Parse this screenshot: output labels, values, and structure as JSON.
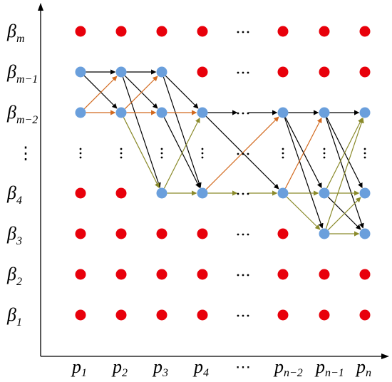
{
  "columns": [
    {
      "base": "p",
      "sub": "1"
    },
    {
      "base": "p",
      "sub": "2"
    },
    {
      "base": "p",
      "sub": "3"
    },
    {
      "base": "p",
      "sub": "4"
    },
    {
      "base": "⋯",
      "sub": ""
    },
    {
      "base": "p",
      "sub": "n−2"
    },
    {
      "base": "p",
      "sub": "n−1"
    },
    {
      "base": "p",
      "sub": "n"
    }
  ],
  "rows": [
    {
      "base": "β",
      "sub": "m"
    },
    {
      "base": "β",
      "sub": "m−1"
    },
    {
      "base": "β",
      "sub": "m−2"
    },
    {
      "base": "⋮",
      "sub": ""
    },
    {
      "base": "β",
      "sub": "4"
    },
    {
      "base": "β",
      "sub": "3"
    },
    {
      "base": "β",
      "sub": "2"
    },
    {
      "base": "β",
      "sub": "1"
    }
  ],
  "colors": {
    "inactive_node": "#e8000b",
    "active_node": "#6a9fdc",
    "edge_black": "#000000",
    "edge_olive": "#8a8a2a",
    "edge_orange": "#d2691e"
  },
  "grid": [
    "rrrr.rrr",
    "bbbr.rrr",
    "bbbb.bbb",
    "::::.:::",
    "rrbb.bbb",
    "rrrr.rbb",
    "rrrr.rrr",
    "rrrr.rrr"
  ],
  "edges": [
    {
      "from": [
        0,
        1
      ],
      "to": [
        1,
        1
      ],
      "color": "edge_black"
    },
    {
      "from": [
        0,
        1
      ],
      "to": [
        1,
        2
      ],
      "color": "edge_black"
    },
    {
      "from": [
        0,
        2
      ],
      "to": [
        1,
        1
      ],
      "color": "edge_orange"
    },
    {
      "from": [
        0,
        2
      ],
      "to": [
        1,
        2
      ],
      "color": "edge_orange"
    },
    {
      "from": [
        1,
        1
      ],
      "to": [
        2,
        1
      ],
      "color": "edge_black"
    },
    {
      "from": [
        1,
        1
      ],
      "to": [
        2,
        2
      ],
      "color": "edge_black"
    },
    {
      "from": [
        1,
        1
      ],
      "to": [
        2,
        4
      ],
      "color": "edge_black"
    },
    {
      "from": [
        1,
        2
      ],
      "to": [
        2,
        1
      ],
      "color": "edge_orange"
    },
    {
      "from": [
        1,
        2
      ],
      "to": [
        2,
        2
      ],
      "color": "edge_orange"
    },
    {
      "from": [
        1,
        2
      ],
      "to": [
        2,
        4
      ],
      "color": "edge_olive"
    },
    {
      "from": [
        2,
        1
      ],
      "to": [
        3,
        2
      ],
      "color": "edge_black"
    },
    {
      "from": [
        2,
        1
      ],
      "to": [
        3,
        4
      ],
      "color": "edge_black"
    },
    {
      "from": [
        2,
        2
      ],
      "to": [
        3,
        2
      ],
      "color": "edge_orange"
    },
    {
      "from": [
        2,
        2
      ],
      "to": [
        3,
        4
      ],
      "color": "edge_black"
    },
    {
      "from": [
        2,
        4
      ],
      "to": [
        3,
        2
      ],
      "color": "edge_olive"
    },
    {
      "from": [
        2,
        4
      ],
      "to": [
        3,
        4
      ],
      "color": "edge_olive"
    },
    {
      "from": [
        3,
        2
      ],
      "to": [
        4,
        2
      ],
      "color": "edge_black"
    },
    {
      "from": [
        3,
        2
      ],
      "to": [
        5,
        4
      ],
      "color": "edge_black"
    },
    {
      "from": [
        3,
        4
      ],
      "to": [
        5,
        2
      ],
      "color": "edge_orange"
    },
    {
      "from": [
        3,
        4
      ],
      "to": [
        4,
        4
      ],
      "color": "edge_olive"
    },
    {
      "from": [
        4,
        2
      ],
      "to": [
        5,
        2
      ],
      "color": "edge_black"
    },
    {
      "from": [
        4,
        4
      ],
      "to": [
        5,
        4
      ],
      "color": "edge_olive"
    },
    {
      "from": [
        5,
        2
      ],
      "to": [
        6,
        2
      ],
      "color": "edge_black"
    },
    {
      "from": [
        5,
        2
      ],
      "to": [
        6,
        4
      ],
      "color": "edge_black"
    },
    {
      "from": [
        5,
        2
      ],
      "to": [
        6,
        5
      ],
      "color": "edge_black"
    },
    {
      "from": [
        5,
        4
      ],
      "to": [
        6,
        2
      ],
      "color": "edge_orange"
    },
    {
      "from": [
        5,
        4
      ],
      "to": [
        6,
        4
      ],
      "color": "edge_olive"
    },
    {
      "from": [
        5,
        4
      ],
      "to": [
        6,
        5
      ],
      "color": "edge_olive"
    },
    {
      "from": [
        6,
        2
      ],
      "to": [
        7,
        2
      ],
      "color": "edge_black"
    },
    {
      "from": [
        6,
        2
      ],
      "to": [
        7,
        4
      ],
      "color": "edge_black"
    },
    {
      "from": [
        6,
        2
      ],
      "to": [
        7,
        5
      ],
      "color": "edge_black"
    },
    {
      "from": [
        6,
        4
      ],
      "to": [
        7,
        2
      ],
      "color": "edge_olive"
    },
    {
      "from": [
        6,
        4
      ],
      "to": [
        7,
        4
      ],
      "color": "edge_olive"
    },
    {
      "from": [
        6,
        4
      ],
      "to": [
        7,
        5
      ],
      "color": "edge_black"
    },
    {
      "from": [
        6,
        5
      ],
      "to": [
        7,
        2
      ],
      "color": "edge_olive"
    },
    {
      "from": [
        6,
        5
      ],
      "to": [
        7,
        4
      ],
      "color": "edge_olive"
    },
    {
      "from": [
        6,
        5
      ],
      "to": [
        7,
        5
      ],
      "color": "edge_olive"
    }
  ]
}
